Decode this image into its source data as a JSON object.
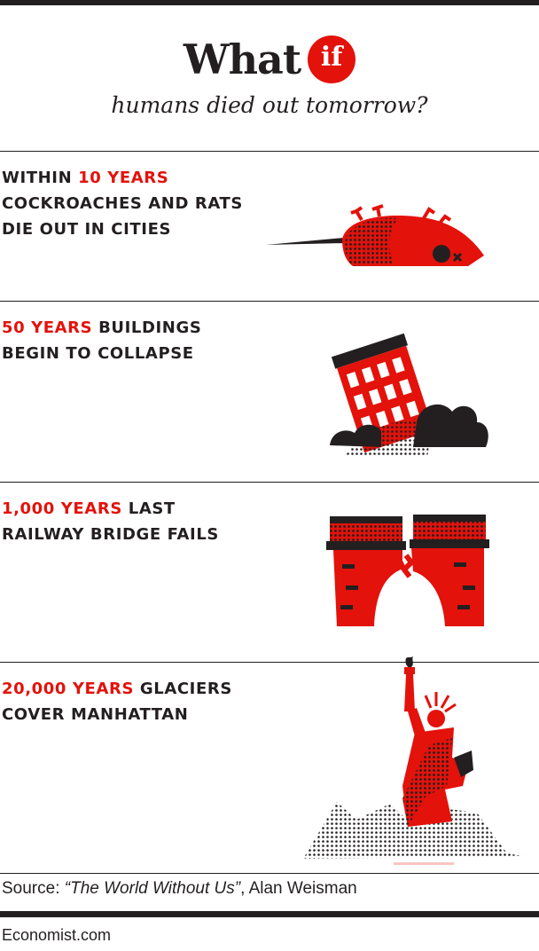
{
  "header": {
    "title": "What",
    "title_badge": "if",
    "subtitle": "humans died out tomorrow?"
  },
  "events": [
    {
      "highlight_prefix": "Within ",
      "highlight": "10 years",
      "line1_rest": "",
      "line2": "cockroaches and rats",
      "line3": "die out in cities",
      "illustration": "dead-rat-icon"
    },
    {
      "highlight": "50 years",
      "line1_rest": " buildings",
      "line2": "begin to collapse",
      "illustration": "collapsing-building-icon"
    },
    {
      "highlight": "1,000 years",
      "line1_rest": " last",
      "line2": "railway bridge fails",
      "illustration": "broken-bridge-icon"
    },
    {
      "highlight": "20,000 years",
      "line1_rest": " glaciers",
      "line2": "cover Manhattan",
      "illustration": "statue-of-liberty-icon"
    }
  ],
  "source": {
    "prefix": "Source: ",
    "book": "“The World Without Us”",
    "author": ", Alan Weisman"
  },
  "brand": "Economist.com",
  "colors": {
    "accent": "#e3120b",
    "ink": "#231f20"
  }
}
